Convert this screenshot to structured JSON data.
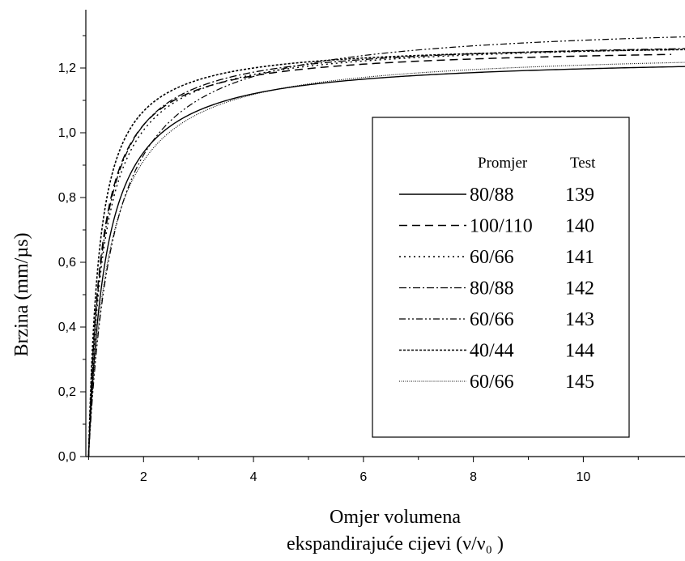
{
  "chart_data": {
    "type": "line",
    "title": "",
    "xlabel_line1": "Omjer volumena",
    "xlabel_line2": "ekspandirajuće  cijevi  (ν/ν₀ )",
    "ylabel": "Brzina  (mm/µs)",
    "xlim": [
      0.95,
      11.85
    ],
    "ylim": [
      0.0,
      1.38
    ],
    "x_ticks": [
      2,
      4,
      6,
      8,
      10
    ],
    "x_tick_labels": [
      "2",
      "4",
      "6",
      "8",
      "10"
    ],
    "y_ticks": [
      0.0,
      0.2,
      0.4,
      0.6,
      0.8,
      1.0,
      1.2
    ],
    "y_tick_labels": [
      "0,0",
      "0,2",
      "0,4",
      "0,6",
      "0,8",
      "1,0",
      "1,2"
    ],
    "grid": false,
    "legend_position": "center-right",
    "legend_headers": {
      "diameter": "Promjer",
      "test": "Test"
    },
    "series": [
      {
        "diameter": "80/88",
        "test": "139",
        "dash": "solid",
        "asymptote": 1.24,
        "k": 0.32,
        "x": [
          1,
          1.05,
          1.1,
          1.2,
          1.3,
          1.5,
          1.75,
          2,
          2.5,
          3,
          4,
          5,
          6,
          8,
          10,
          11.85
        ],
        "y": [
          0.0,
          0.3,
          0.45,
          0.65,
          0.76,
          0.9,
          1.0,
          1.06,
          1.12,
          1.16,
          1.2,
          1.21,
          1.22,
          1.23,
          1.235,
          1.24
        ]
      },
      {
        "diameter": "100/110",
        "test": "140",
        "dash": "dashed",
        "asymptote": 1.27,
        "k": 0.24,
        "x": [
          1,
          1.05,
          1.1,
          1.2,
          1.3,
          1.5,
          1.75,
          2,
          2.5,
          3,
          4,
          5,
          6,
          8,
          10,
          11.6
        ],
        "y": [
          0.0,
          0.35,
          0.52,
          0.74,
          0.86,
          1.0,
          1.09,
          1.14,
          1.19,
          1.22,
          1.245,
          1.255,
          1.26,
          1.265,
          1.27,
          1.27
        ]
      },
      {
        "diameter": "60/66",
        "test": "141",
        "dash": "dotted",
        "asymptote": 1.29,
        "k": 0.28,
        "x": [
          1,
          1.05,
          1.1,
          1.2,
          1.3,
          1.5,
          1.75,
          2,
          2.5,
          3,
          4,
          5,
          6,
          8,
          10,
          11.85
        ],
        "y": [
          0.0,
          0.33,
          0.5,
          0.71,
          0.83,
          0.97,
          1.07,
          1.12,
          1.18,
          1.21,
          1.25,
          1.27,
          1.28,
          1.285,
          1.29,
          1.29
        ]
      },
      {
        "diameter": "80/88",
        "test": "142",
        "dash": "dash-dot",
        "asymptote": 1.29,
        "k": 0.26,
        "x": [
          1,
          1.05,
          1.1,
          1.2,
          1.3,
          1.5,
          1.75,
          2,
          2.5,
          3,
          4,
          5,
          6,
          8,
          10,
          11.85
        ],
        "y": [
          0.0,
          0.34,
          0.51,
          0.73,
          0.85,
          0.99,
          1.08,
          1.13,
          1.19,
          1.22,
          1.25,
          1.27,
          1.28,
          1.285,
          1.29,
          1.29
        ]
      },
      {
        "diameter": "60/66",
        "test": "143",
        "dash": "dash-dot-dot",
        "asymptote": 1.35,
        "k": 0.45,
        "x": [
          1,
          1.05,
          1.1,
          1.2,
          1.3,
          1.5,
          1.75,
          2,
          2.5,
          3,
          4,
          5,
          6,
          8,
          10,
          11.85
        ],
        "y": [
          0.0,
          0.32,
          0.48,
          0.7,
          0.82,
          0.97,
          1.08,
          1.14,
          1.22,
          1.26,
          1.3,
          1.32,
          1.33,
          1.34,
          1.345,
          1.35
        ]
      },
      {
        "diameter": "40/44",
        "test": "144",
        "dash": "short-dash",
        "asymptote": 1.28,
        "k": 0.2,
        "x": [
          1,
          1.05,
          1.1,
          1.2,
          1.3,
          1.5,
          1.75,
          2,
          2.5,
          3,
          4,
          5,
          6,
          8,
          10,
          11.85
        ],
        "y": [
          0.0,
          0.36,
          0.54,
          0.76,
          0.88,
          1.02,
          1.11,
          1.16,
          1.21,
          1.24,
          1.26,
          1.27,
          1.275,
          1.28,
          1.28,
          1.28
        ]
      },
      {
        "diameter": "60/66",
        "test": "145",
        "dash": "fine-dot",
        "asymptote": 1.26,
        "k": 0.38,
        "x": [
          1,
          1.05,
          1.1,
          1.2,
          1.3,
          1.5,
          1.75,
          2,
          2.5,
          3,
          4,
          5,
          6,
          8,
          10,
          11.85
        ],
        "y": [
          0.0,
          0.3,
          0.46,
          0.66,
          0.78,
          0.93,
          1.02,
          1.08,
          1.15,
          1.19,
          1.22,
          1.24,
          1.25,
          1.255,
          1.26,
          1.26
        ]
      }
    ]
  },
  "colors": {
    "line": "#000000",
    "background": "#ffffff"
  }
}
